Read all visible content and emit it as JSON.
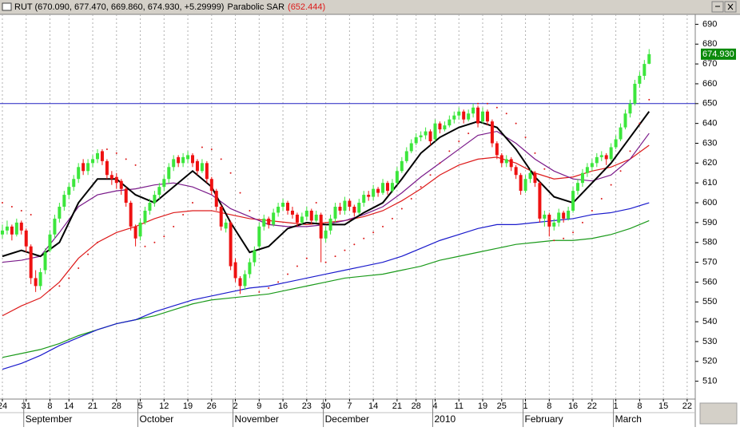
{
  "chart_data": {
    "type": "candlestick",
    "title": "RUT (670.090, 677.470, 669.860, 674.930, +5.29999)",
    "indicator": "Parabolic SAR",
    "indicator_value": "(652.444)",
    "last_price_label": "674.930",
    "last_price": 674.93,
    "up_color": "#3ce63c",
    "down_color": "#ee1111",
    "ylim": [
      501,
      695
    ],
    "yticks": [
      510,
      520,
      530,
      540,
      550,
      560,
      570,
      580,
      590,
      600,
      610,
      620,
      630,
      640,
      650,
      660,
      670,
      680,
      690
    ],
    "xlim": [
      -0.5,
      145.7
    ],
    "xticks": [
      {
        "value": 0,
        "label": "24"
      },
      {
        "value": 5,
        "label": "31"
      },
      {
        "value": 10,
        "label": "8"
      },
      {
        "value": 14,
        "label": "14"
      },
      {
        "value": 19,
        "label": "21"
      },
      {
        "value": 24,
        "label": "28"
      },
      {
        "value": 29,
        "label": "5"
      },
      {
        "value": 34,
        "label": "12"
      },
      {
        "value": 39,
        "label": "19"
      },
      {
        "value": 44,
        "label": "26"
      },
      {
        "value": 49,
        "label": "2"
      },
      {
        "value": 54,
        "label": "9"
      },
      {
        "value": 59,
        "label": "16"
      },
      {
        "value": 64,
        "label": "23"
      },
      {
        "value": 68,
        "label": "30"
      },
      {
        "value": 73,
        "label": "7"
      },
      {
        "value": 78,
        "label": "14"
      },
      {
        "value": 83,
        "label": "21"
      },
      {
        "value": 87,
        "label": "28"
      },
      {
        "value": 91,
        "label": "4"
      },
      {
        "value": 96,
        "label": "11"
      },
      {
        "value": 101,
        "label": "19"
      },
      {
        "value": 105,
        "label": "25"
      },
      {
        "value": 110,
        "label": "1"
      },
      {
        "value": 115,
        "label": "8"
      },
      {
        "value": 120,
        "label": "16"
      },
      {
        "value": 124,
        "label": "22"
      },
      {
        "value": 129,
        "label": "1"
      },
      {
        "value": 134,
        "label": "8"
      },
      {
        "value": 139,
        "label": "15"
      },
      {
        "value": 144,
        "label": "22"
      }
    ],
    "month_labels": [
      {
        "value": 5,
        "label": "September"
      },
      {
        "value": 29,
        "label": "October"
      },
      {
        "value": 49,
        "label": "November"
      },
      {
        "value": 68,
        "label": "December"
      },
      {
        "value": 91,
        "label": "2010"
      },
      {
        "value": 110,
        "label": "February"
      },
      {
        "value": 129,
        "label": "March"
      }
    ],
    "hline": {
      "value": 650,
      "color": "#2020c0"
    },
    "candles": [
      [
        584,
        589,
        582,
        586
      ],
      [
        586,
        591,
        584,
        588
      ],
      [
        588,
        589,
        581,
        584
      ],
      [
        584,
        592,
        583,
        590
      ],
      [
        590,
        591,
        584,
        586
      ],
      [
        586,
        587,
        575,
        578
      ],
      [
        578,
        579,
        559,
        562
      ],
      [
        562,
        566,
        555,
        558
      ],
      [
        558,
        567,
        556,
        565
      ],
      [
        566,
        577,
        564,
        575
      ],
      [
        576,
        586,
        575,
        584
      ],
      [
        584,
        594,
        582,
        592
      ],
      [
        592,
        600,
        590,
        598
      ],
      [
        598,
        606,
        596,
        604
      ],
      [
        604,
        610,
        602,
        608
      ],
      [
        608,
        614,
        606,
        612
      ],
      [
        612,
        620,
        610,
        618
      ],
      [
        620,
        622,
        614,
        616
      ],
      [
        616,
        622,
        614,
        620
      ],
      [
        620,
        624,
        618,
        622
      ],
      [
        622,
        627,
        620,
        625
      ],
      [
        626,
        627,
        619,
        621
      ],
      [
        621,
        622,
        612,
        614
      ],
      [
        614,
        616,
        609,
        612
      ],
      [
        613,
        615,
        607,
        610
      ],
      [
        611,
        612,
        604,
        607
      ],
      [
        607,
        608,
        598,
        600
      ],
      [
        600,
        601,
        586,
        588
      ],
      [
        588,
        589,
        578,
        582
      ],
      [
        583,
        592,
        581,
        590
      ],
      [
        590,
        598,
        589,
        596
      ],
      [
        596,
        602,
        594,
        600
      ],
      [
        600,
        606,
        598,
        604
      ],
      [
        604,
        610,
        602,
        608
      ],
      [
        608,
        614,
        606,
        612
      ],
      [
        612,
        620,
        610,
        618
      ],
      [
        618,
        624,
        616,
        622
      ],
      [
        623,
        624,
        618,
        620
      ],
      [
        620,
        625,
        618,
        623
      ],
      [
        622,
        626,
        620,
        624
      ],
      [
        624,
        625,
        618,
        620
      ],
      [
        621,
        622,
        614,
        616
      ],
      [
        616,
        622,
        615,
        620
      ],
      [
        620,
        621,
        610,
        612
      ],
      [
        612,
        613,
        604,
        606
      ],
      [
        606,
        607,
        596,
        598
      ],
      [
        598,
        599,
        586,
        588
      ],
      [
        587,
        592,
        585,
        590
      ],
      [
        590,
        591,
        566,
        568
      ],
      [
        570,
        572,
        560,
        562
      ],
      [
        562,
        563,
        554,
        558
      ],
      [
        558,
        566,
        556,
        564
      ],
      [
        564,
        572,
        562,
        570
      ],
      [
        570,
        578,
        568,
        576
      ],
      [
        578,
        590,
        577,
        588
      ],
      [
        588,
        594,
        586,
        592
      ],
      [
        592,
        593,
        587,
        589
      ],
      [
        589,
        597,
        588,
        595
      ],
      [
        595,
        600,
        593,
        598
      ],
      [
        598,
        602,
        596,
        600
      ],
      [
        600,
        601,
        594,
        596
      ],
      [
        596,
        598,
        592,
        594
      ],
      [
        594,
        595,
        588,
        590
      ],
      [
        590,
        595,
        589,
        593
      ],
      [
        593,
        598,
        591,
        596
      ],
      [
        596,
        597,
        589,
        591
      ],
      [
        591,
        596,
        590,
        594
      ],
      [
        594,
        595,
        570,
        582
      ],
      [
        582,
        588,
        580,
        586
      ],
      [
        586,
        594,
        584,
        592
      ],
      [
        592,
        600,
        590,
        598
      ],
      [
        598,
        600,
        594,
        596
      ],
      [
        596,
        603,
        594,
        601
      ],
      [
        601,
        602,
        596,
        598
      ],
      [
        598,
        599,
        593,
        595
      ],
      [
        595,
        602,
        594,
        600
      ],
      [
        600,
        606,
        598,
        604
      ],
      [
        604,
        606,
        601,
        603
      ],
      [
        603,
        609,
        601,
        607
      ],
      [
        607,
        608,
        603,
        605
      ],
      [
        605,
        612,
        604,
        610
      ],
      [
        610,
        611,
        604,
        606
      ],
      [
        606,
        612,
        605,
        610
      ],
      [
        610,
        618,
        609,
        616
      ],
      [
        616,
        623,
        615,
        621
      ],
      [
        621,
        628,
        620,
        626
      ],
      [
        626,
        632,
        625,
        630
      ],
      [
        630,
        635,
        629,
        633
      ],
      [
        633,
        636,
        631,
        634
      ],
      [
        634,
        638,
        632,
        636
      ],
      [
        636,
        637,
        629,
        631
      ],
      [
        632,
        642,
        631,
        640
      ],
      [
        640,
        641,
        635,
        637
      ],
      [
        637,
        641,
        636,
        639
      ],
      [
        639,
        644,
        638,
        642
      ],
      [
        642,
        646,
        640,
        644
      ],
      [
        644,
        648,
        642,
        646
      ],
      [
        646,
        647,
        640,
        642
      ],
      [
        642,
        647,
        641,
        645
      ],
      [
        645,
        650,
        643,
        648
      ],
      [
        648,
        649,
        638,
        640
      ],
      [
        641,
        648,
        640,
        646
      ],
      [
        646,
        647,
        639,
        641
      ],
      [
        641,
        642,
        628,
        630
      ],
      [
        630,
        631,
        622,
        624
      ],
      [
        624,
        625,
        618,
        620
      ],
      [
        620,
        624,
        618,
        622
      ],
      [
        622,
        623,
        616,
        618
      ],
      [
        618,
        619,
        612,
        614
      ],
      [
        614,
        615,
        604,
        606
      ],
      [
        606,
        614,
        605,
        612
      ],
      [
        612,
        617,
        610,
        615
      ],
      [
        615,
        616,
        608,
        610
      ],
      [
        610,
        611,
        590,
        592
      ],
      [
        592,
        596,
        588,
        594
      ],
      [
        594,
        595,
        583,
        588
      ],
      [
        588,
        592,
        586,
        590
      ],
      [
        590,
        597,
        588,
        595
      ],
      [
        595,
        596,
        590,
        592
      ],
      [
        592,
        598,
        591,
        596
      ],
      [
        596,
        608,
        595,
        606
      ],
      [
        606,
        612,
        604,
        610
      ],
      [
        610,
        617,
        608,
        615
      ],
      [
        615,
        620,
        613,
        618
      ],
      [
        618,
        622,
        616,
        620
      ],
      [
        620,
        625,
        618,
        623
      ],
      [
        623,
        626,
        621,
        624
      ],
      [
        624,
        625,
        619,
        622
      ],
      [
        622,
        630,
        621,
        628
      ],
      [
        628,
        634,
        627,
        632
      ],
      [
        632,
        640,
        631,
        638
      ],
      [
        638,
        647,
        637,
        645
      ],
      [
        645,
        652,
        643,
        650
      ],
      [
        650,
        662,
        649,
        660
      ],
      [
        660,
        666,
        658,
        664
      ],
      [
        664,
        672,
        662,
        670
      ],
      [
        670.09,
        677.47,
        669.86,
        674.93
      ]
    ],
    "x": [
      0,
      4,
      8,
      12,
      16,
      20,
      24,
      28,
      32,
      36,
      40,
      44,
      48,
      52,
      56,
      60,
      64,
      68,
      72,
      76,
      80,
      84,
      88,
      92,
      96,
      100,
      104,
      108,
      112,
      116,
      120,
      124,
      128,
      132,
      136
    ],
    "series": [
      {
        "color": "#1a9a1a",
        "values": [
          522,
          524,
          526,
          529,
          533,
          536,
          539,
          541,
          543,
          546,
          549,
          551,
          552,
          553,
          554,
          556,
          558,
          560,
          562,
          563,
          564,
          566,
          568,
          571,
          573,
          575,
          577,
          579,
          580,
          581,
          581,
          582,
          584,
          587,
          591
        ]
      },
      {
        "color": "#1a1acc",
        "values": [
          516,
          519,
          523,
          528,
          532,
          536,
          539,
          541,
          545,
          548,
          551,
          553,
          555,
          557,
          558,
          560,
          562,
          564,
          566,
          568,
          570,
          573,
          577,
          581,
          584,
          587,
          589,
          589,
          590,
          591,
          592,
          594,
          595,
          597,
          600
        ]
      },
      {
        "color": "#dd1a1a",
        "values": [
          543,
          548,
          552,
          560,
          572,
          580,
          585,
          588,
          592,
          595,
          596,
          596,
          594,
          592,
          591,
          590,
          589,
          590,
          591,
          593,
          596,
          601,
          607,
          614,
          619,
          622,
          623,
          620,
          615,
          612,
          613,
          616,
          618,
          622,
          629
        ]
      },
      {
        "color": "#7a1a8a",
        "values": [
          570,
          571,
          573,
          585,
          598,
          604,
          606,
          607,
          609,
          610,
          608,
          604,
          597,
          593,
          589,
          588,
          588,
          589,
          591,
          594,
          598,
          605,
          613,
          620,
          627,
          634,
          636,
          630,
          622,
          616,
          612,
          611,
          614,
          622,
          635
        ]
      },
      {
        "color": "#000000",
        "values": [
          573,
          576,
          573,
          580,
          600,
          612,
          612,
          604,
          600,
          608,
          616,
          608,
          590,
          575,
          578,
          587,
          590,
          589,
          589,
          595,
          600,
          612,
          625,
          633,
          638,
          641,
          638,
          627,
          613,
          603,
          600,
          610,
          620,
          633,
          646
        ]
      }
    ],
    "sar": {
      "color": "#dd1a1a",
      "x": [
        0,
        2,
        4,
        6,
        10,
        12,
        14,
        16,
        18,
        20,
        22,
        24,
        26,
        28,
        30,
        32,
        34,
        36,
        38,
        40,
        42,
        44,
        46,
        48,
        50,
        52,
        54,
        56,
        58,
        60,
        62,
        64,
        66,
        68,
        70,
        72,
        74,
        76,
        78,
        80,
        82,
        84,
        86,
        88,
        90,
        92,
        94,
        96,
        98,
        100,
        102,
        104,
        106,
        108,
        110,
        112,
        114,
        116,
        118,
        120,
        122,
        124,
        126,
        128,
        130,
        132,
        134,
        136
      ],
      "values": [
        600,
        598,
        596,
        594,
        556,
        558,
        562,
        567,
        574,
        580,
        627,
        625,
        622,
        619,
        578,
        580,
        583,
        588,
        594,
        600,
        628,
        627,
        622,
        615,
        605,
        596,
        555,
        557,
        560,
        564,
        568,
        572,
        600,
        570,
        573,
        576,
        579,
        582,
        585,
        588,
        592,
        597,
        602,
        608,
        614,
        620,
        626,
        631,
        635,
        650,
        650,
        648,
        645,
        640,
        633,
        625,
        617,
        581,
        582,
        585,
        590,
        596,
        602,
        609,
        616,
        626,
        640,
        652
      ]
    }
  }
}
